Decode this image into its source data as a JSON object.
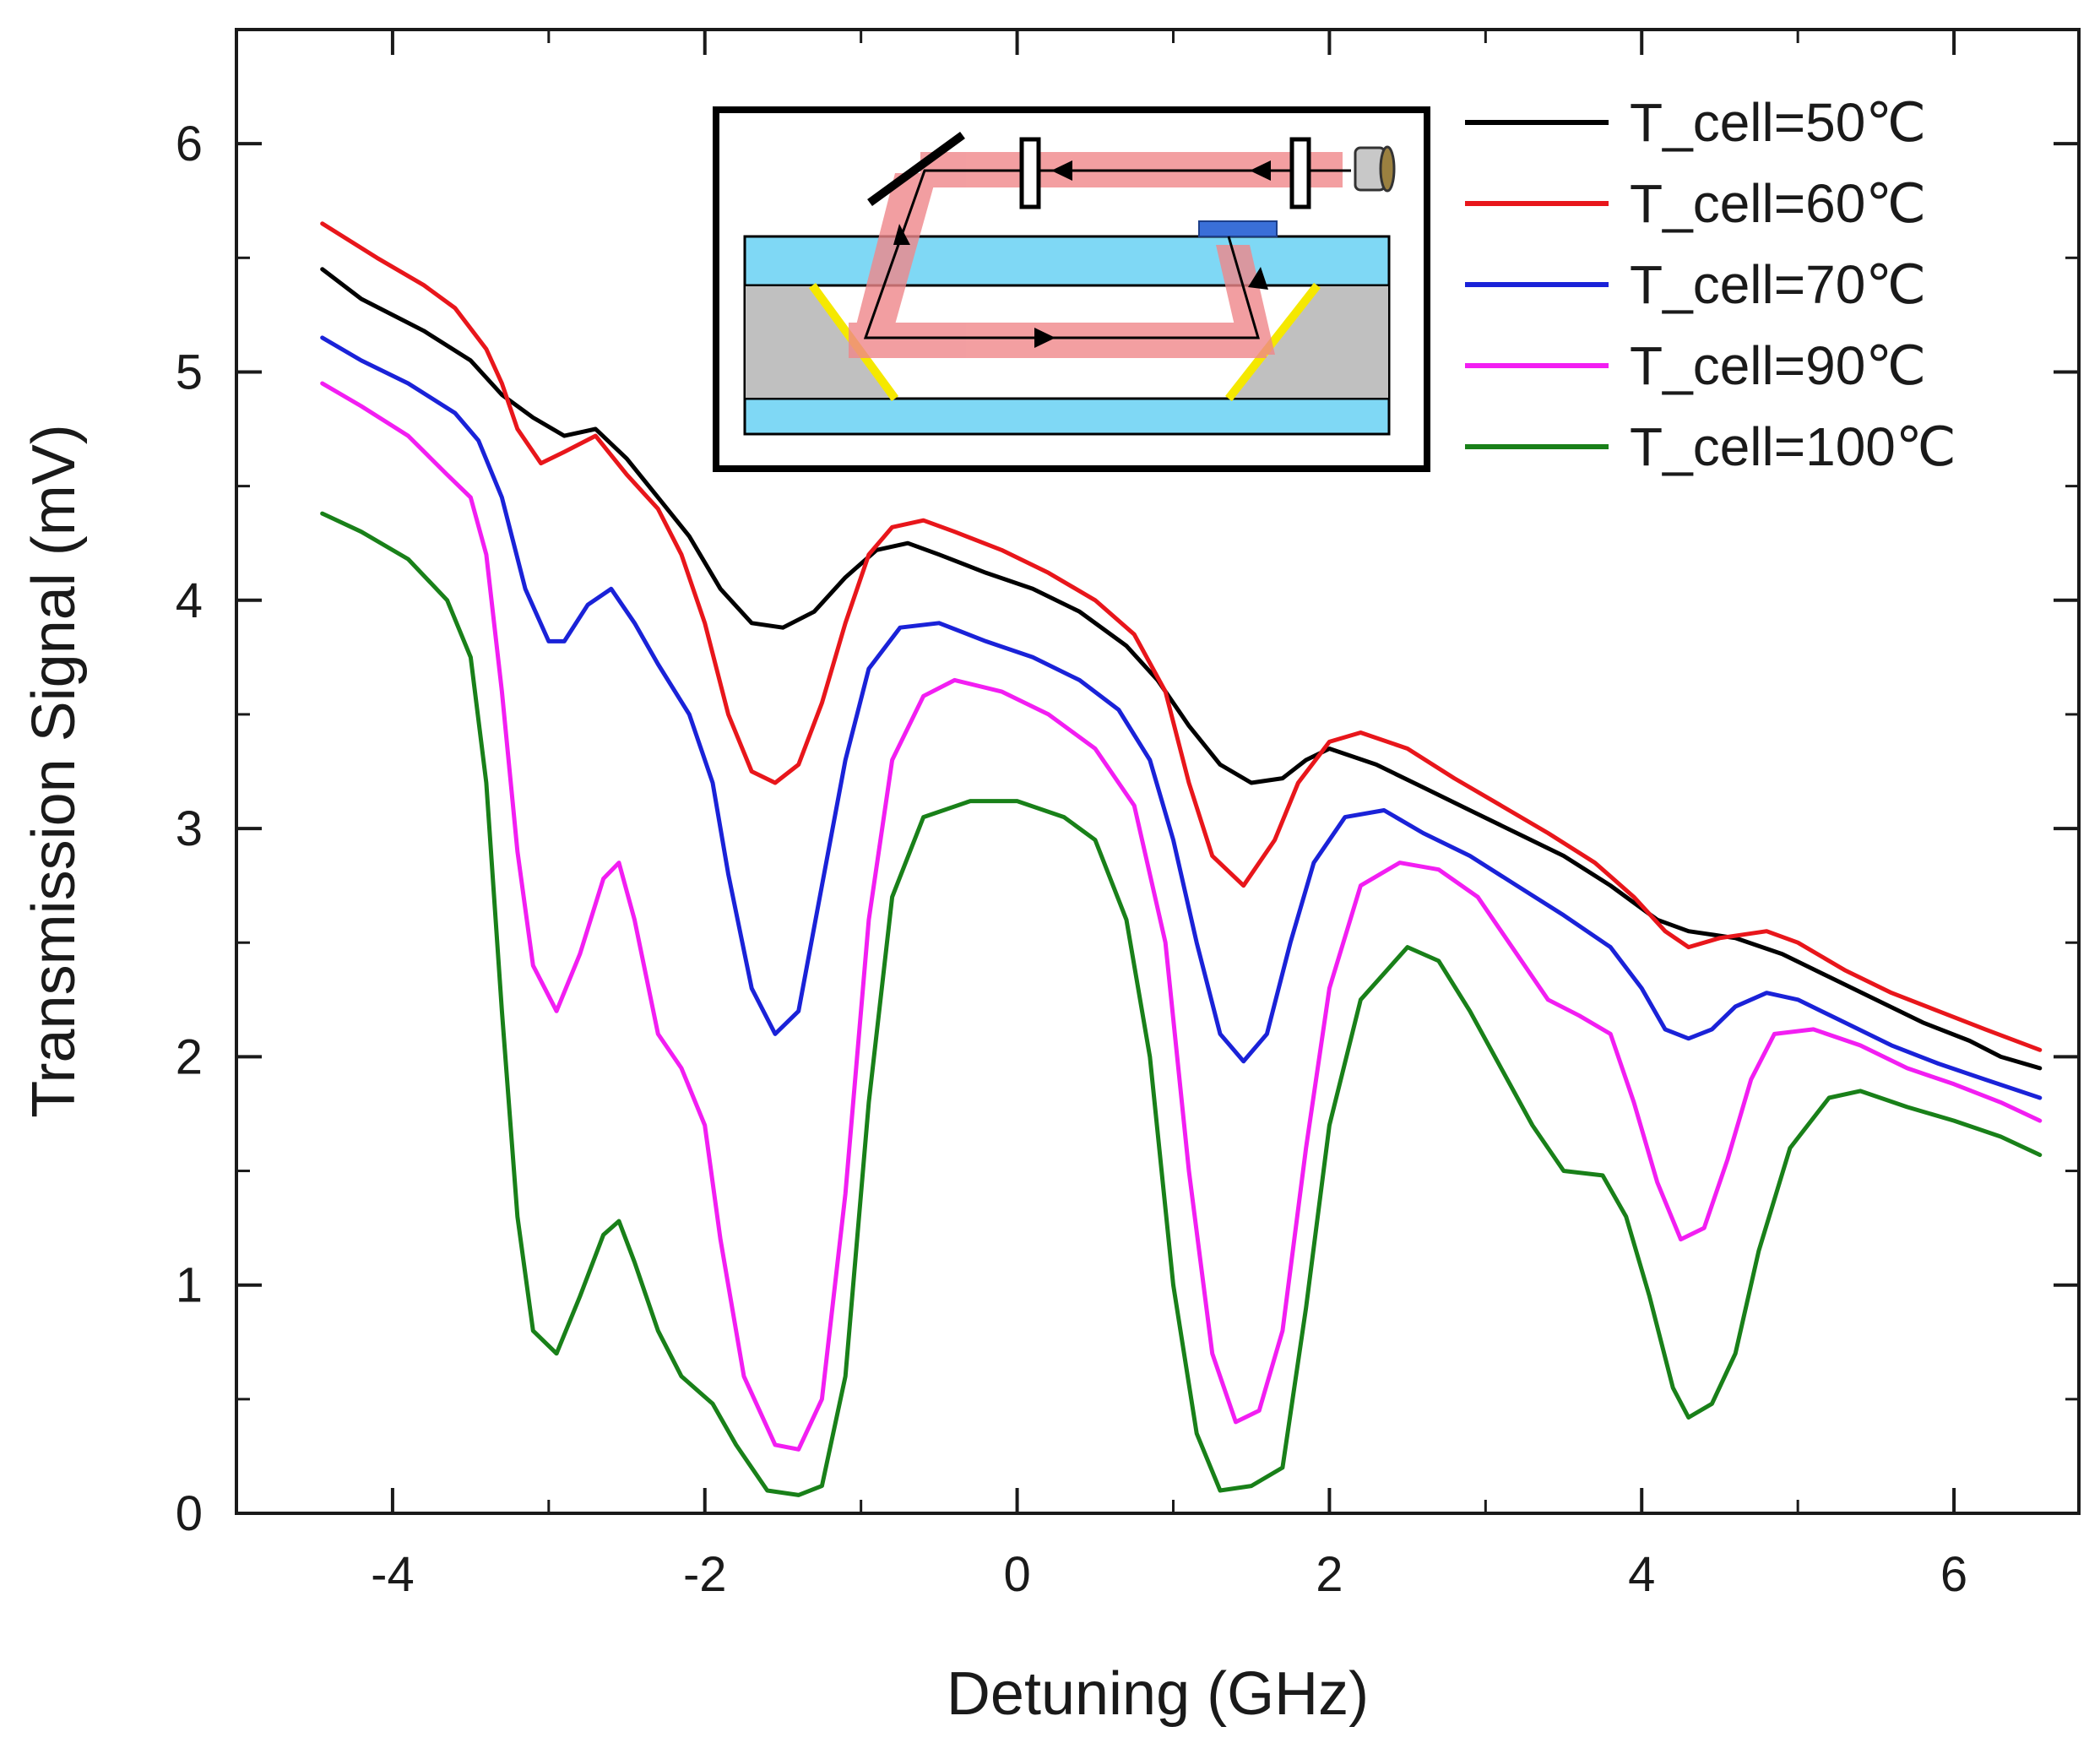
{
  "chart_data": {
    "type": "line",
    "title": "",
    "xlabel": "Detuning (GHz)",
    "ylabel": "Transmission Signal (mV)",
    "xlim": [
      -5.0,
      6.8
    ],
    "ylim": [
      0,
      6.5
    ],
    "xticks": [
      -4,
      -2,
      0,
      2,
      4,
      6
    ],
    "yticks": [
      0,
      1,
      2,
      3,
      4,
      5,
      6
    ],
    "xtick_labels": [
      "-4",
      "-2",
      "0",
      "2",
      "4",
      "6"
    ],
    "ytick_labels": [
      "0",
      "1",
      "2",
      "3",
      "4",
      "5",
      "6"
    ],
    "legend_position": "top-right",
    "series": [
      {
        "name": "T_cell=50℃",
        "color": "#000000",
        "points": [
          [
            -4.45,
            5.45
          ],
          [
            -4.2,
            5.32
          ],
          [
            -3.8,
            5.18
          ],
          [
            -3.5,
            5.05
          ],
          [
            -3.3,
            4.9
          ],
          [
            -3.1,
            4.8
          ],
          [
            -2.9,
            4.72
          ],
          [
            -2.7,
            4.75
          ],
          [
            -2.5,
            4.62
          ],
          [
            -2.3,
            4.45
          ],
          [
            -2.1,
            4.28
          ],
          [
            -1.9,
            4.05
          ],
          [
            -1.7,
            3.9
          ],
          [
            -1.5,
            3.88
          ],
          [
            -1.3,
            3.95
          ],
          [
            -1.1,
            4.1
          ],
          [
            -0.9,
            4.22
          ],
          [
            -0.7,
            4.25
          ],
          [
            -0.5,
            4.2
          ],
          [
            -0.2,
            4.12
          ],
          [
            0.1,
            4.05
          ],
          [
            0.4,
            3.95
          ],
          [
            0.7,
            3.8
          ],
          [
            0.9,
            3.65
          ],
          [
            1.1,
            3.45
          ],
          [
            1.3,
            3.28
          ],
          [
            1.5,
            3.2
          ],
          [
            1.7,
            3.22
          ],
          [
            1.85,
            3.3
          ],
          [
            2.0,
            3.35
          ],
          [
            2.3,
            3.28
          ],
          [
            2.6,
            3.18
          ],
          [
            2.9,
            3.08
          ],
          [
            3.2,
            2.98
          ],
          [
            3.5,
            2.88
          ],
          [
            3.8,
            2.75
          ],
          [
            4.1,
            2.6
          ],
          [
            4.3,
            2.55
          ],
          [
            4.6,
            2.52
          ],
          [
            4.9,
            2.45
          ],
          [
            5.2,
            2.35
          ],
          [
            5.5,
            2.25
          ],
          [
            5.8,
            2.15
          ],
          [
            6.1,
            2.07
          ],
          [
            6.3,
            2.0
          ],
          [
            6.55,
            1.95
          ]
        ]
      },
      {
        "name": "T_cell=60℃",
        "color": "#e8161b",
        "points": [
          [
            -4.45,
            5.65
          ],
          [
            -4.1,
            5.5
          ],
          [
            -3.8,
            5.38
          ],
          [
            -3.6,
            5.28
          ],
          [
            -3.4,
            5.1
          ],
          [
            -3.3,
            4.95
          ],
          [
            -3.2,
            4.75
          ],
          [
            -3.05,
            4.6
          ],
          [
            -2.9,
            4.65
          ],
          [
            -2.7,
            4.72
          ],
          [
            -2.5,
            4.55
          ],
          [
            -2.3,
            4.4
          ],
          [
            -2.15,
            4.2
          ],
          [
            -2.0,
            3.9
          ],
          [
            -1.85,
            3.5
          ],
          [
            -1.7,
            3.25
          ],
          [
            -1.55,
            3.2
          ],
          [
            -1.4,
            3.28
          ],
          [
            -1.25,
            3.55
          ],
          [
            -1.1,
            3.9
          ],
          [
            -0.95,
            4.2
          ],
          [
            -0.8,
            4.32
          ],
          [
            -0.6,
            4.35
          ],
          [
            -0.4,
            4.3
          ],
          [
            -0.1,
            4.22
          ],
          [
            0.2,
            4.12
          ],
          [
            0.5,
            4.0
          ],
          [
            0.75,
            3.85
          ],
          [
            0.95,
            3.6
          ],
          [
            1.1,
            3.2
          ],
          [
            1.25,
            2.88
          ],
          [
            1.45,
            2.75
          ],
          [
            1.65,
            2.95
          ],
          [
            1.8,
            3.2
          ],
          [
            2.0,
            3.38
          ],
          [
            2.2,
            3.42
          ],
          [
            2.5,
            3.35
          ],
          [
            2.8,
            3.22
          ],
          [
            3.1,
            3.1
          ],
          [
            3.4,
            2.98
          ],
          [
            3.7,
            2.85
          ],
          [
            3.95,
            2.7
          ],
          [
            4.15,
            2.55
          ],
          [
            4.3,
            2.48
          ],
          [
            4.5,
            2.52
          ],
          [
            4.8,
            2.55
          ],
          [
            5.0,
            2.5
          ],
          [
            5.3,
            2.38
          ],
          [
            5.6,
            2.28
          ],
          [
            5.9,
            2.2
          ],
          [
            6.2,
            2.12
          ],
          [
            6.55,
            2.03
          ]
        ]
      },
      {
        "name": "T_cell=70℃",
        "color": "#1a22d8",
        "points": [
          [
            -4.45,
            5.15
          ],
          [
            -4.2,
            5.05
          ],
          [
            -3.9,
            4.95
          ],
          [
            -3.6,
            4.82
          ],
          [
            -3.45,
            4.7
          ],
          [
            -3.3,
            4.45
          ],
          [
            -3.15,
            4.05
          ],
          [
            -3.0,
            3.82
          ],
          [
            -2.9,
            3.82
          ],
          [
            -2.75,
            3.98
          ],
          [
            -2.6,
            4.05
          ],
          [
            -2.45,
            3.9
          ],
          [
            -2.3,
            3.72
          ],
          [
            -2.1,
            3.5
          ],
          [
            -1.95,
            3.2
          ],
          [
            -1.85,
            2.8
          ],
          [
            -1.7,
            2.3
          ],
          [
            -1.55,
            2.1
          ],
          [
            -1.4,
            2.2
          ],
          [
            -1.25,
            2.75
          ],
          [
            -1.1,
            3.3
          ],
          [
            -0.95,
            3.7
          ],
          [
            -0.75,
            3.88
          ],
          [
            -0.5,
            3.9
          ],
          [
            -0.2,
            3.82
          ],
          [
            0.1,
            3.75
          ],
          [
            0.4,
            3.65
          ],
          [
            0.65,
            3.52
          ],
          [
            0.85,
            3.3
          ],
          [
            1.0,
            2.95
          ],
          [
            1.15,
            2.5
          ],
          [
            1.3,
            2.1
          ],
          [
            1.45,
            1.98
          ],
          [
            1.6,
            2.1
          ],
          [
            1.75,
            2.5
          ],
          [
            1.9,
            2.85
          ],
          [
            2.1,
            3.05
          ],
          [
            2.35,
            3.08
          ],
          [
            2.6,
            2.98
          ],
          [
            2.9,
            2.88
          ],
          [
            3.2,
            2.75
          ],
          [
            3.5,
            2.62
          ],
          [
            3.8,
            2.48
          ],
          [
            4.0,
            2.3
          ],
          [
            4.15,
            2.12
          ],
          [
            4.3,
            2.08
          ],
          [
            4.45,
            2.12
          ],
          [
            4.6,
            2.22
          ],
          [
            4.8,
            2.28
          ],
          [
            5.0,
            2.25
          ],
          [
            5.3,
            2.15
          ],
          [
            5.6,
            2.05
          ],
          [
            5.9,
            1.97
          ],
          [
            6.2,
            1.9
          ],
          [
            6.55,
            1.82
          ]
        ]
      },
      {
        "name": "T_cell=90℃",
        "color": "#f21ef2",
        "points": [
          [
            -4.45,
            4.95
          ],
          [
            -4.2,
            4.85
          ],
          [
            -3.9,
            4.72
          ],
          [
            -3.65,
            4.55
          ],
          [
            -3.5,
            4.45
          ],
          [
            -3.4,
            4.2
          ],
          [
            -3.3,
            3.6
          ],
          [
            -3.2,
            2.9
          ],
          [
            -3.1,
            2.4
          ],
          [
            -2.95,
            2.2
          ],
          [
            -2.8,
            2.45
          ],
          [
            -2.65,
            2.78
          ],
          [
            -2.55,
            2.85
          ],
          [
            -2.45,
            2.6
          ],
          [
            -2.3,
            2.1
          ],
          [
            -2.15,
            1.95
          ],
          [
            -2.0,
            1.7
          ],
          [
            -1.9,
            1.2
          ],
          [
            -1.75,
            0.6
          ],
          [
            -1.55,
            0.3
          ],
          [
            -1.4,
            0.28
          ],
          [
            -1.25,
            0.5
          ],
          [
            -1.1,
            1.4
          ],
          [
            -0.95,
            2.6
          ],
          [
            -0.8,
            3.3
          ],
          [
            -0.6,
            3.58
          ],
          [
            -0.4,
            3.65
          ],
          [
            -0.1,
            3.6
          ],
          [
            0.2,
            3.5
          ],
          [
            0.5,
            3.35
          ],
          [
            0.75,
            3.1
          ],
          [
            0.95,
            2.5
          ],
          [
            1.1,
            1.5
          ],
          [
            1.25,
            0.7
          ],
          [
            1.4,
            0.4
          ],
          [
            1.55,
            0.45
          ],
          [
            1.7,
            0.8
          ],
          [
            1.85,
            1.6
          ],
          [
            2.0,
            2.3
          ],
          [
            2.2,
            2.75
          ],
          [
            2.45,
            2.85
          ],
          [
            2.7,
            2.82
          ],
          [
            2.95,
            2.7
          ],
          [
            3.2,
            2.45
          ],
          [
            3.4,
            2.25
          ],
          [
            3.6,
            2.18
          ],
          [
            3.8,
            2.1
          ],
          [
            3.95,
            1.8
          ],
          [
            4.1,
            1.45
          ],
          [
            4.25,
            1.2
          ],
          [
            4.4,
            1.25
          ],
          [
            4.55,
            1.55
          ],
          [
            4.7,
            1.9
          ],
          [
            4.85,
            2.1
          ],
          [
            5.1,
            2.12
          ],
          [
            5.4,
            2.05
          ],
          [
            5.7,
            1.95
          ],
          [
            6.0,
            1.88
          ],
          [
            6.3,
            1.8
          ],
          [
            6.55,
            1.72
          ]
        ]
      },
      {
        "name": "T_cell=100℃",
        "color": "#198019",
        "points": [
          [
            -4.45,
            4.38
          ],
          [
            -4.2,
            4.3
          ],
          [
            -3.9,
            4.18
          ],
          [
            -3.65,
            4.0
          ],
          [
            -3.5,
            3.75
          ],
          [
            -3.4,
            3.2
          ],
          [
            -3.3,
            2.2
          ],
          [
            -3.2,
            1.3
          ],
          [
            -3.1,
            0.8
          ],
          [
            -2.95,
            0.7
          ],
          [
            -2.8,
            0.95
          ],
          [
            -2.65,
            1.22
          ],
          [
            -2.55,
            1.28
          ],
          [
            -2.45,
            1.1
          ],
          [
            -2.3,
            0.8
          ],
          [
            -2.15,
            0.6
          ],
          [
            -1.95,
            0.48
          ],
          [
            -1.8,
            0.3
          ],
          [
            -1.6,
            0.1
          ],
          [
            -1.4,
            0.08
          ],
          [
            -1.25,
            0.12
          ],
          [
            -1.1,
            0.6
          ],
          [
            -0.95,
            1.8
          ],
          [
            -0.8,
            2.7
          ],
          [
            -0.6,
            3.05
          ],
          [
            -0.3,
            3.12
          ],
          [
            0.0,
            3.12
          ],
          [
            0.3,
            3.05
          ],
          [
            0.5,
            2.95
          ],
          [
            0.7,
            2.6
          ],
          [
            0.85,
            2.0
          ],
          [
            1.0,
            1.0
          ],
          [
            1.15,
            0.35
          ],
          [
            1.3,
            0.1
          ],
          [
            1.5,
            0.12
          ],
          [
            1.7,
            0.2
          ],
          [
            1.85,
            0.9
          ],
          [
            2.0,
            1.7
          ],
          [
            2.2,
            2.25
          ],
          [
            2.5,
            2.48
          ],
          [
            2.7,
            2.42
          ],
          [
            2.9,
            2.2
          ],
          [
            3.1,
            1.95
          ],
          [
            3.3,
            1.7
          ],
          [
            3.5,
            1.5
          ],
          [
            3.75,
            1.48
          ],
          [
            3.9,
            1.3
          ],
          [
            4.05,
            0.95
          ],
          [
            4.2,
            0.55
          ],
          [
            4.3,
            0.42
          ],
          [
            4.45,
            0.48
          ],
          [
            4.6,
            0.7
          ],
          [
            4.75,
            1.15
          ],
          [
            4.95,
            1.6
          ],
          [
            5.2,
            1.82
          ],
          [
            5.4,
            1.85
          ],
          [
            5.7,
            1.78
          ],
          [
            6.0,
            1.72
          ],
          [
            6.3,
            1.65
          ],
          [
            6.55,
            1.57
          ]
        ]
      }
    ],
    "inset": {
      "description": "setup schematic",
      "beam_color": "#f0878a",
      "glass_color": "#7fd8f5",
      "cell_color": "#c0c0c0",
      "mirror_color": "#f5e800"
    }
  }
}
